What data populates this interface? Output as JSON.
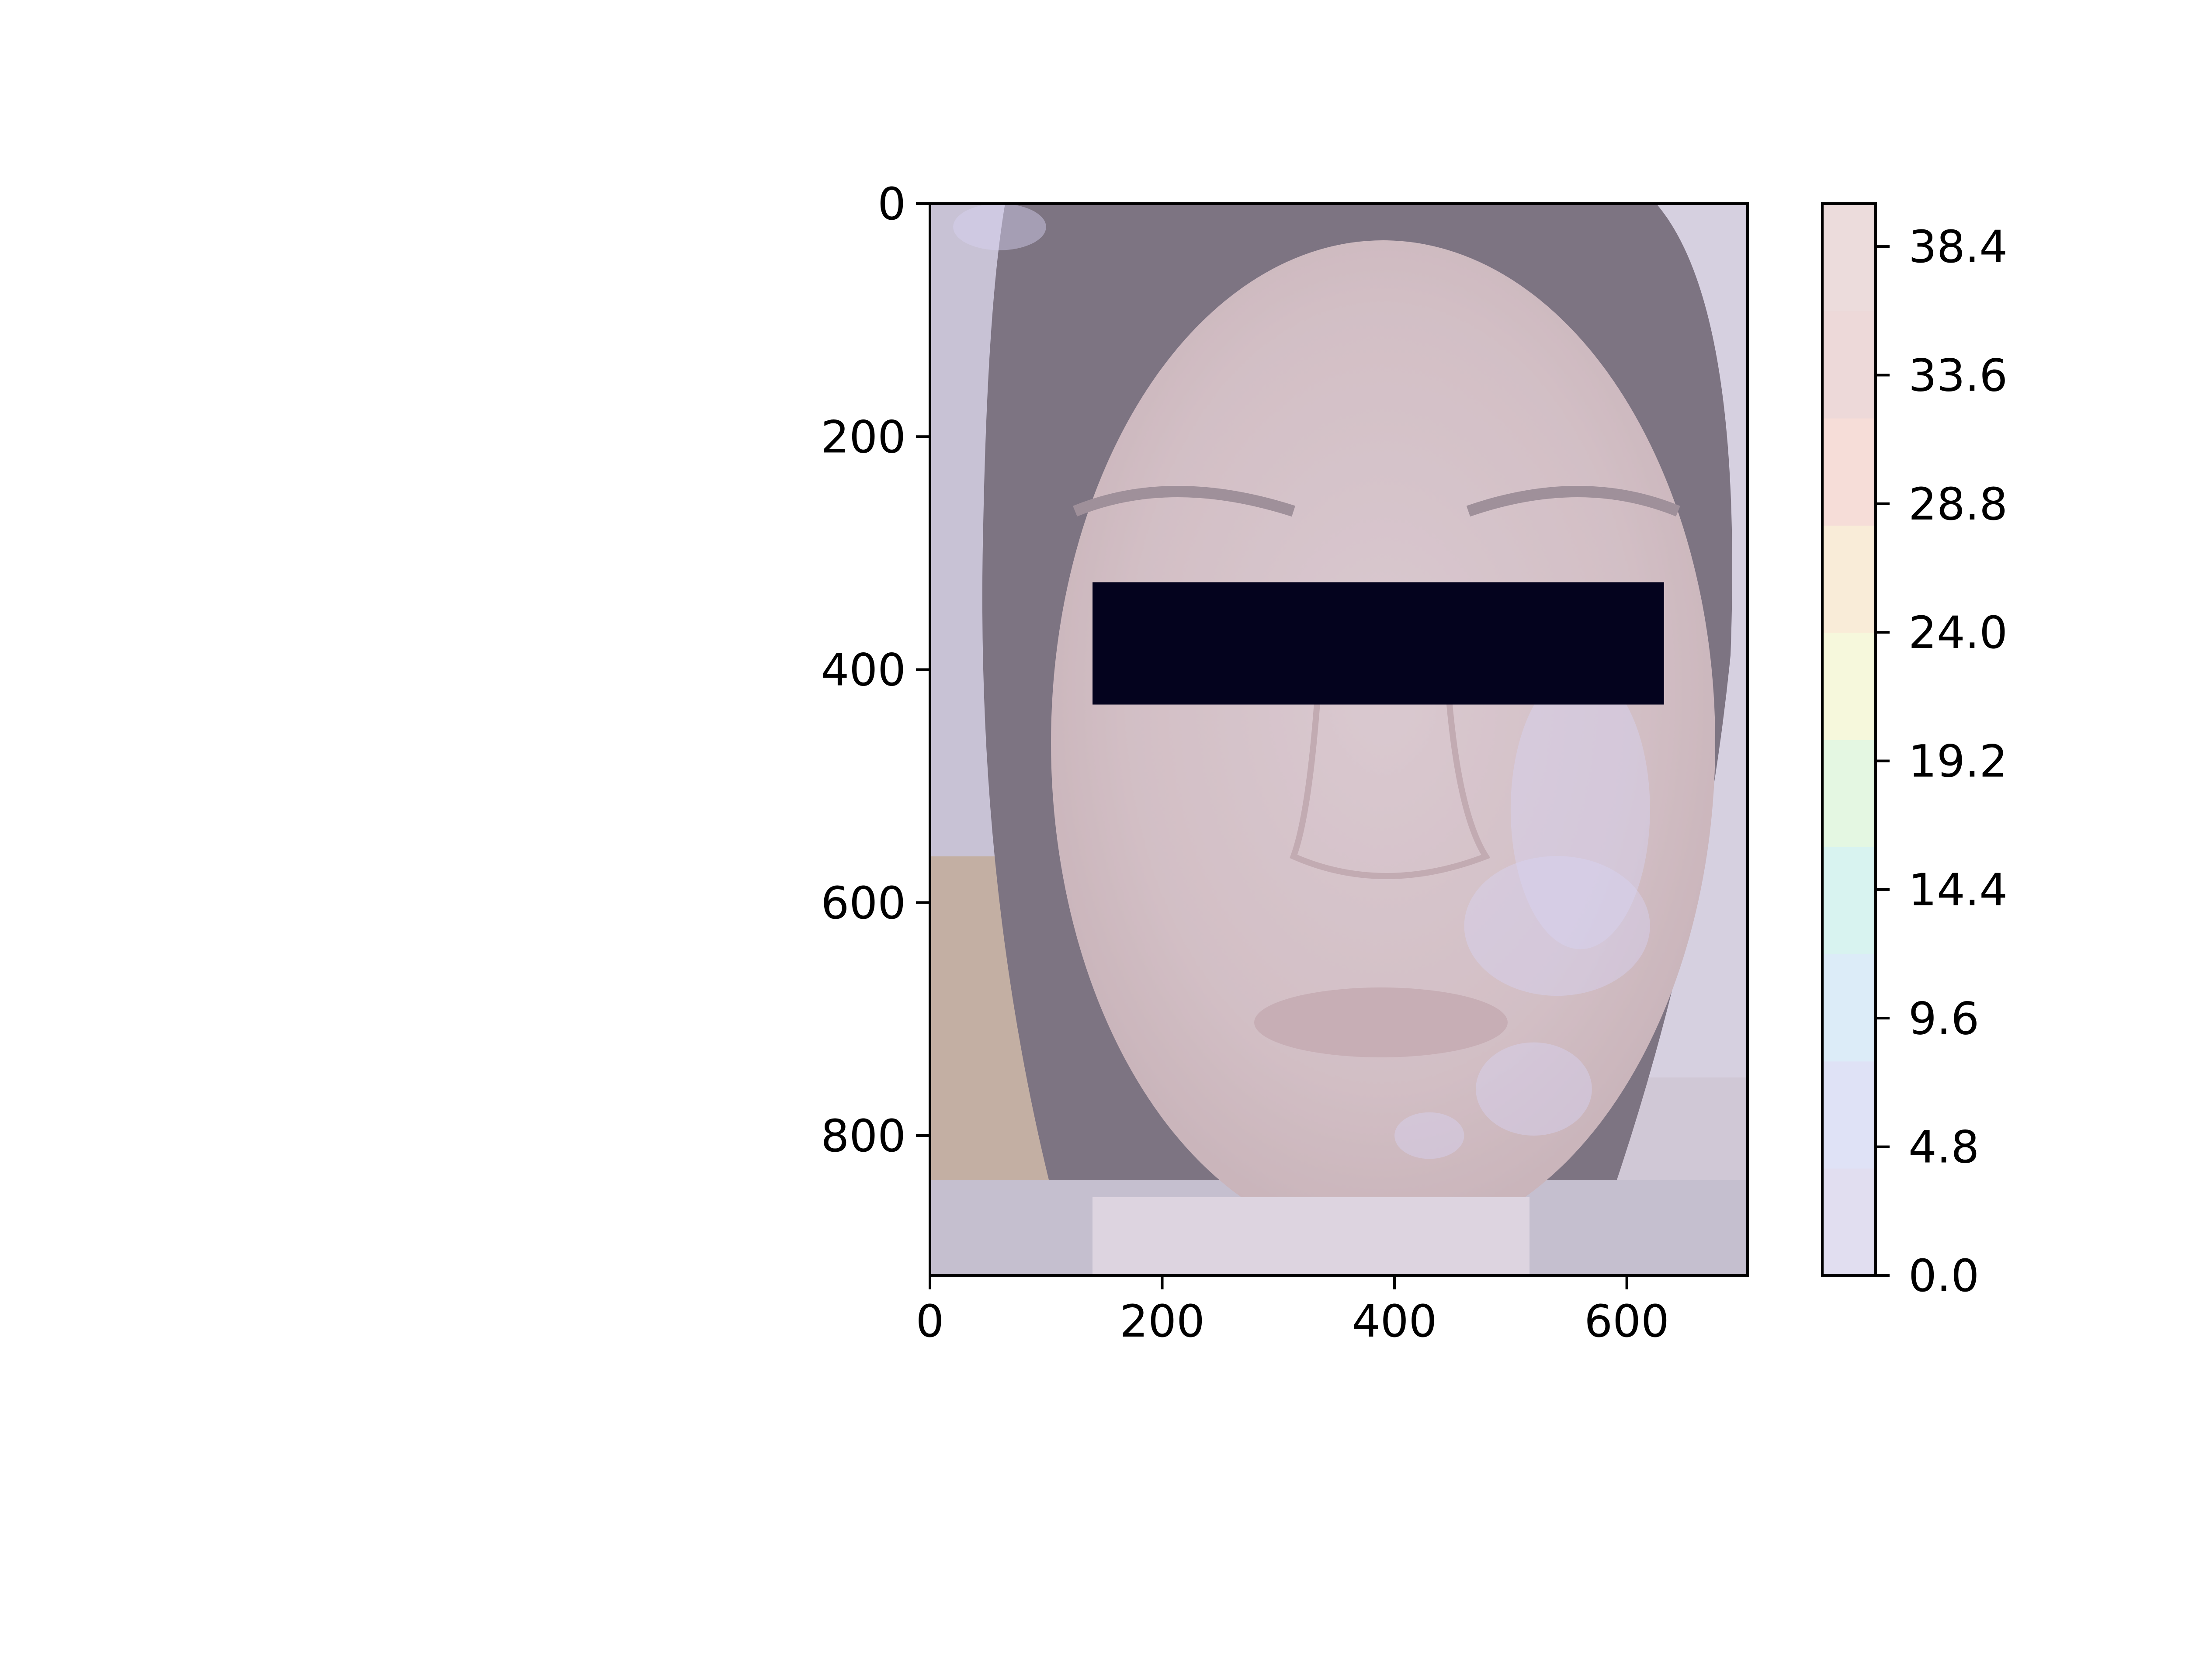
{
  "chart_data": {
    "type": "heatmap",
    "title": "",
    "xlabel": "",
    "ylabel": "",
    "image": {
      "description_visible": "photograph of a face with eye region covered by black bar, overlaid with translucent contour heatmap",
      "width_units": 704,
      "height_units": 920
    },
    "x_axis": {
      "range": [
        0,
        704
      ],
      "ticks": [
        0,
        200,
        400,
        600
      ],
      "tick_labels": [
        "0",
        "200",
        "400",
        "600"
      ]
    },
    "y_axis": {
      "range": [
        920,
        0
      ],
      "inverted": true,
      "ticks": [
        0,
        200,
        400,
        600,
        800
      ],
      "tick_labels": [
        "0",
        "200",
        "400",
        "600",
        "800"
      ]
    },
    "redaction_bar": {
      "x": [
        140,
        632
      ],
      "y": [
        325,
        430
      ],
      "color": "#04031e"
    },
    "colorbar": {
      "range": [
        0.0,
        40.0
      ],
      "ticks": [
        0.0,
        4.8,
        9.6,
        14.4,
        19.2,
        24.0,
        28.8,
        33.6,
        38.4
      ],
      "tick_labels": [
        "0.0",
        "4.8",
        "9.6",
        "14.4",
        "19.2",
        "24.0",
        "28.8",
        "33.6",
        "38.4"
      ],
      "colormap_stops": [
        "#e1def0",
        "#dfe2f6",
        "#dcecf8",
        "#d8f3f0",
        "#e4f7e2",
        "#f6f8dc",
        "#f9ecd8",
        "#f6ddd8",
        "#edd9d9",
        "#ecdcdc"
      ]
    }
  }
}
